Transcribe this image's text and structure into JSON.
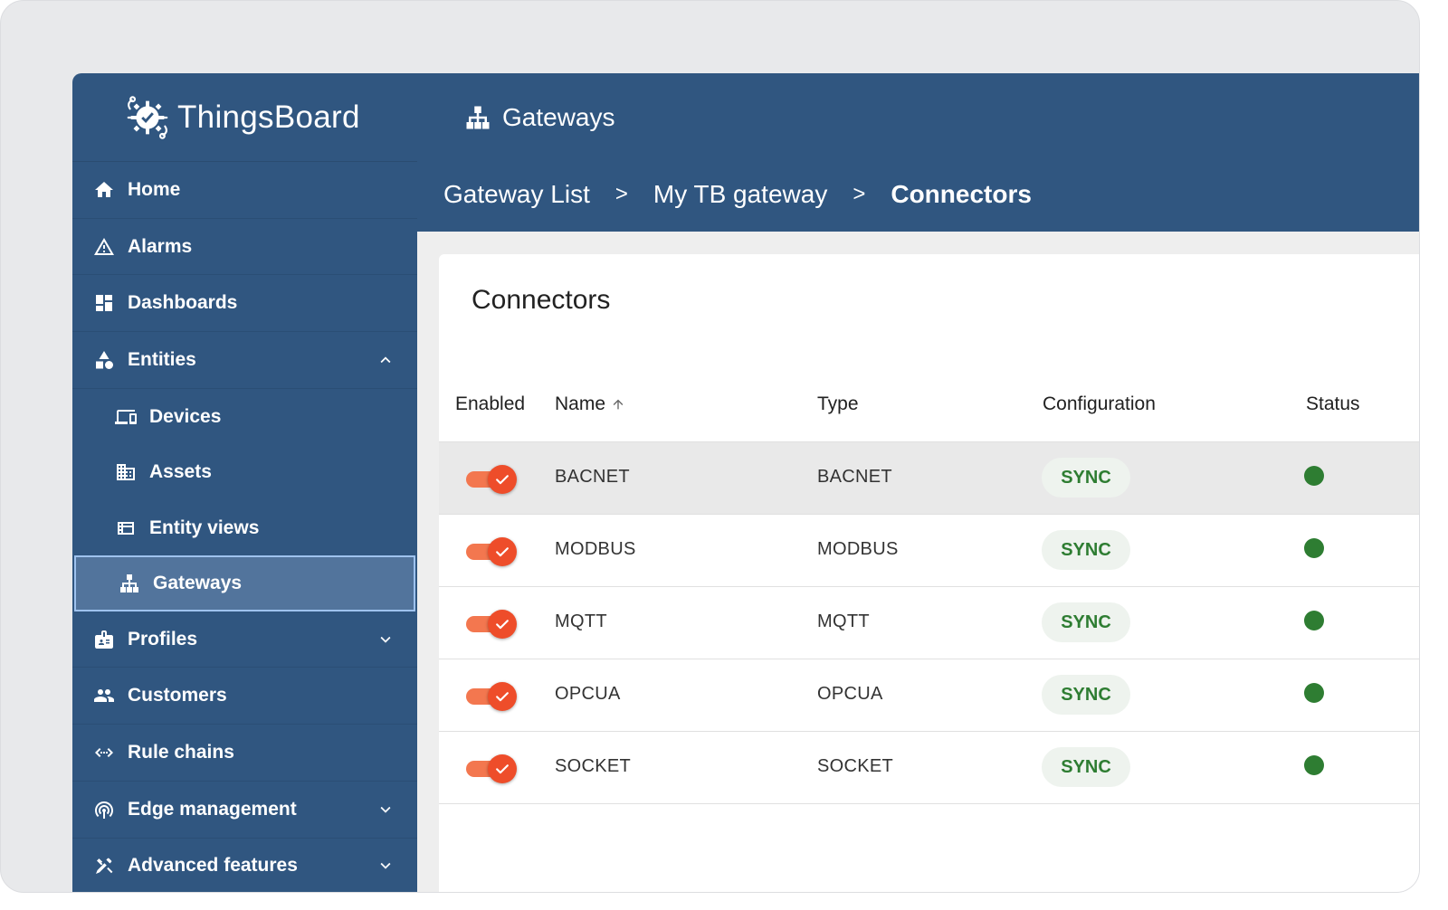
{
  "app": {
    "logo_text": "ThingsBoard"
  },
  "sidebar": {
    "items": [
      {
        "label": "Home",
        "icon": "home-icon"
      },
      {
        "label": "Alarms",
        "icon": "alarm-warning-icon"
      },
      {
        "label": "Dashboards",
        "icon": "dashboard-icon"
      },
      {
        "label": "Entities",
        "icon": "entities-icon",
        "expanded": true
      },
      {
        "label": "Devices",
        "icon": "devices-icon"
      },
      {
        "label": "Assets",
        "icon": "assets-icon"
      },
      {
        "label": "Entity views",
        "icon": "entity-views-icon"
      },
      {
        "label": "Gateways",
        "icon": "gateway-icon",
        "active": true
      },
      {
        "label": "Profiles",
        "icon": "profiles-icon"
      },
      {
        "label": "Customers",
        "icon": "customers-icon"
      },
      {
        "label": "Rule chains",
        "icon": "rule-chains-icon"
      },
      {
        "label": "Edge management",
        "icon": "edge-icon"
      },
      {
        "label": "Advanced features",
        "icon": "tools-icon"
      }
    ]
  },
  "header": {
    "title": "Gateways",
    "breadcrumb": [
      "Gateway List",
      "My TB gateway",
      "Connectors"
    ],
    "separator": ">"
  },
  "card": {
    "title": "Connectors",
    "columns": [
      "Enabled",
      "Name",
      "Type",
      "Configuration",
      "Status"
    ],
    "rows": [
      {
        "enabled": true,
        "name": "BACNET",
        "type": "BACNET",
        "configuration": "SYNC",
        "status": "active"
      },
      {
        "enabled": true,
        "name": "MODBUS",
        "type": "MODBUS",
        "configuration": "SYNC",
        "status": "active"
      },
      {
        "enabled": true,
        "name": "MQTT",
        "type": "MQTT",
        "configuration": "SYNC",
        "status": "active"
      },
      {
        "enabled": true,
        "name": "OPCUA",
        "type": "OPCUA",
        "configuration": "SYNC",
        "status": "active"
      },
      {
        "enabled": true,
        "name": "SOCKET",
        "type": "SOCKET",
        "configuration": "SYNC",
        "status": "active"
      }
    ]
  },
  "colors": {
    "primary": "#305680",
    "toggle": "#ee4d2a",
    "sync_text": "#2e7d32",
    "status_active": "#2e7d32"
  }
}
